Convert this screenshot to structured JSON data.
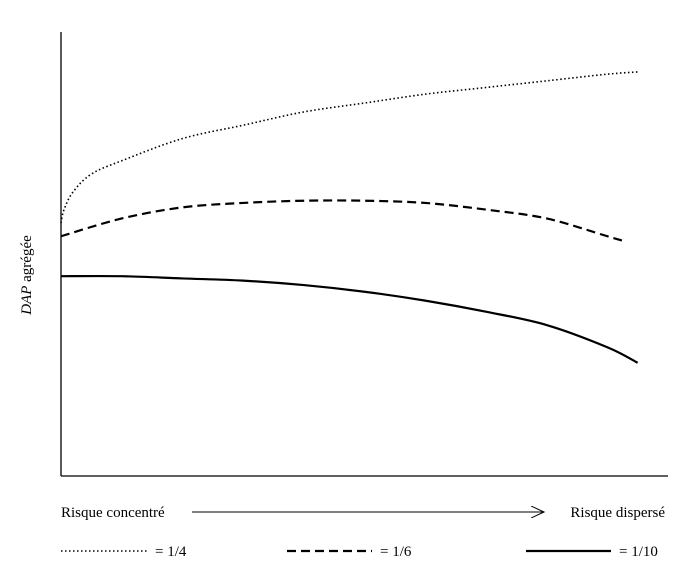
{
  "chart_data": {
    "type": "line",
    "title": "",
    "ylabel": {
      "italic_part": "DAP",
      "rest": " agrégée"
    },
    "xlabel_left": "Risque concentré",
    "xlabel_right": "Risque dispersé",
    "xlim": [
      0,
      1
    ],
    "ylim": [
      0,
      1
    ],
    "grid": false,
    "legend_position": "bottom",
    "series": [
      {
        "name": "= 1/4",
        "style": "dotted",
        "x": [
          0.0,
          0.005,
          0.02,
          0.05,
          0.1,
          0.2,
          0.3,
          0.4,
          0.5,
          0.6,
          0.7,
          0.8,
          0.9,
          0.95
        ],
        "y": [
          0.57,
          0.6,
          0.64,
          0.68,
          0.71,
          0.76,
          0.79,
          0.82,
          0.84,
          0.86,
          0.875,
          0.89,
          0.905,
          0.91
        ]
      },
      {
        "name": "= 1/6",
        "style": "dashed",
        "x": [
          0.0,
          0.1,
          0.2,
          0.3,
          0.4,
          0.5,
          0.6,
          0.7,
          0.8,
          0.9,
          0.925
        ],
        "y": [
          0.54,
          0.58,
          0.605,
          0.615,
          0.62,
          0.62,
          0.615,
          0.6,
          0.58,
          0.54,
          0.53
        ]
      },
      {
        "name": "= 1/10",
        "style": "solid",
        "x": [
          0.0,
          0.1,
          0.2,
          0.3,
          0.4,
          0.5,
          0.6,
          0.7,
          0.8,
          0.9,
          0.95
        ],
        "y": [
          0.45,
          0.45,
          0.445,
          0.44,
          0.43,
          0.415,
          0.395,
          0.37,
          0.34,
          0.29,
          0.255
        ]
      }
    ]
  }
}
